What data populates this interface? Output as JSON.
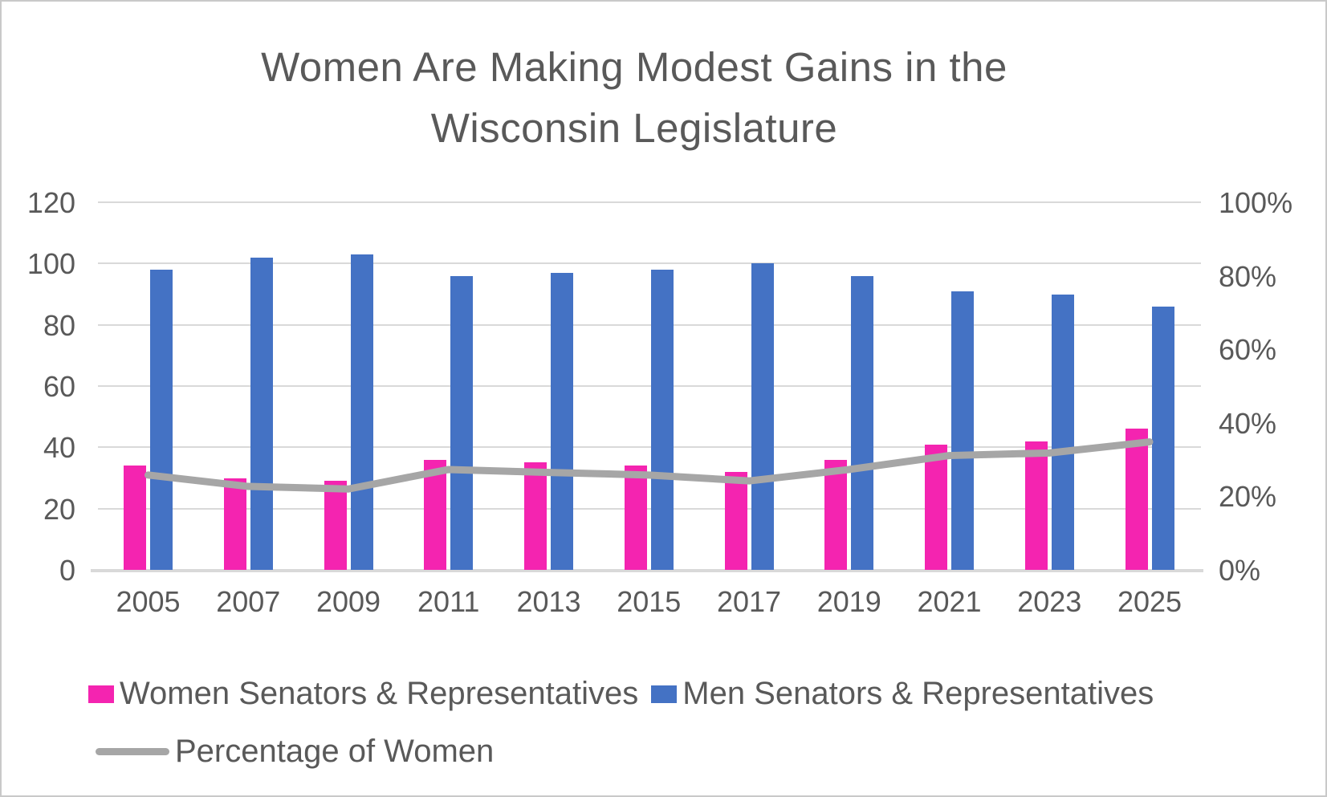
{
  "title": {
    "line1": "Women Are Making Modest Gains in the",
    "line2": "Wisconsin Legislature"
  },
  "chart_data": {
    "type": "bar",
    "subtype": "combo-bar-line-dual-axis",
    "title": "Women Are Making Modest Gains in the Wisconsin Legislature",
    "categories": [
      "2005",
      "2007",
      "2009",
      "2011",
      "2013",
      "2015",
      "2017",
      "2019",
      "2021",
      "2023",
      "2025"
    ],
    "series": [
      {
        "name": "Women Senators & Representatives",
        "type": "bar",
        "axis": "left",
        "color": "#f424b0",
        "values": [
          34,
          30,
          29,
          36,
          35,
          34,
          32,
          36,
          41,
          42,
          46
        ]
      },
      {
        "name": "Men Senators & Representatives",
        "type": "bar",
        "axis": "left",
        "color": "#4472c4",
        "values": [
          98,
          102,
          103,
          96,
          97,
          98,
          100,
          96,
          91,
          90,
          86
        ]
      },
      {
        "name": "Percentage of Women",
        "type": "line",
        "axis": "right",
        "color": "#a6a6a6",
        "values": [
          25.8,
          22.7,
          22.0,
          27.3,
          26.5,
          25.8,
          24.2,
          27.3,
          31.1,
          31.8,
          34.8
        ]
      }
    ],
    "left_axis": {
      "min": 0,
      "max": 120,
      "step": 20,
      "ticks": [
        "0",
        "20",
        "40",
        "60",
        "80",
        "100",
        "120"
      ]
    },
    "right_axis": {
      "min": 0,
      "max": 100,
      "step": 20,
      "ticks": [
        "0%",
        "20%",
        "40%",
        "60%",
        "80%",
        "100%"
      ]
    },
    "grid": true,
    "legend_position": "bottom-left",
    "colors": {
      "text": "#595959",
      "gridline": "#d9d9d9",
      "women_bars": "#f424b0",
      "men_bars": "#4472c4",
      "percentage_line": "#a6a6a6"
    }
  }
}
